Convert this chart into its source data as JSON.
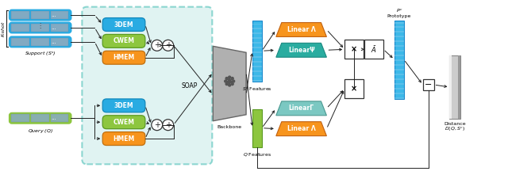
{
  "figsize": [
    6.4,
    2.21
  ],
  "dpi": 100,
  "bg_color": "#ffffff",
  "colors": {
    "blue_3dem": "#29ABE2",
    "green_cwem": "#8DC63F",
    "orange_hmem": "#F7941D",
    "teal_psi": "#2AACA0",
    "light_teal_gamma": "#7BC8C2",
    "orange_linear": "#F7941D",
    "soap_bg": "#C8EAE8",
    "support_border": "#29ABE2",
    "query_border": "#8DC63F",
    "backbone_gray": "#B0B0B0",
    "light_blue_feat": "#3DB8E8",
    "green_feat": "#8DC63F",
    "proto_blue": "#3DB8E8",
    "dist_gray": "#AAAAAA"
  },
  "labels": {
    "support": "Support ($S^s$)",
    "query": "Query ($Q$)",
    "kshot": "K-shot",
    "3dem": "3DEM",
    "cwem": "CWEM",
    "hmem": "HMEM",
    "soap": "SOAP",
    "backbone": "Backbone",
    "sc_features": "$S^c$ Features",
    "q_features": "$Q$ Features",
    "linear_a": "Linear Λ",
    "linear_psi": "LinearΨ",
    "linear_gamma": "LinearΓ",
    "prototype": "Prototype",
    "prototype_sym": "$P^c$",
    "distance": "Distance",
    "distance_sym": "$D(Q, S^c)$",
    "multiply": "×",
    "a_bar": "$\\bar{A}$"
  }
}
